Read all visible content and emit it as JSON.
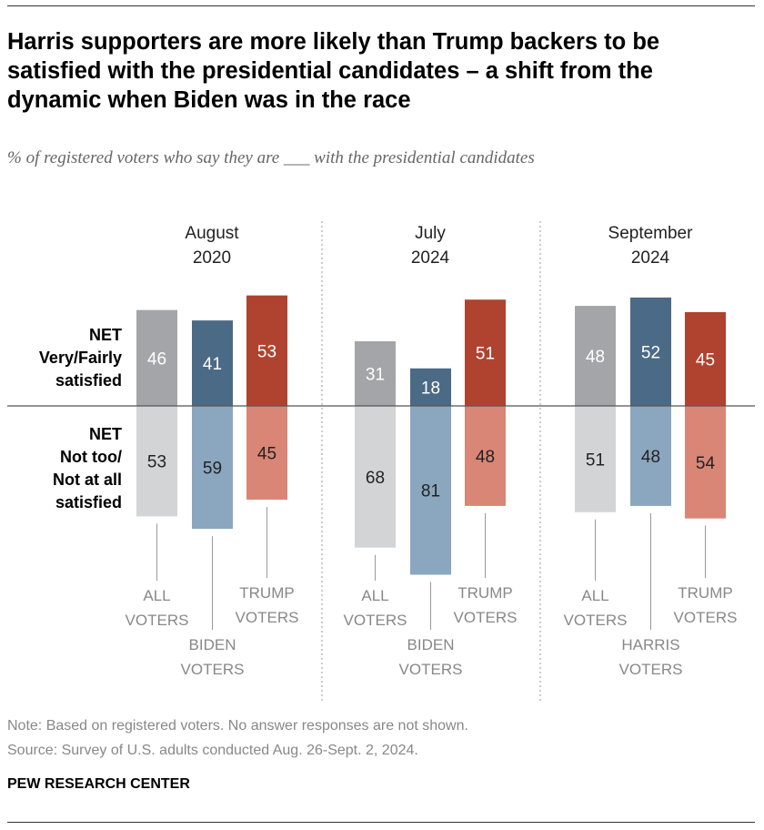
{
  "title": "Harris supporters are more likely than Trump backers to be satisfied with the presidential candidates – a shift from the dynamic when Biden was in the race",
  "subtitle": "% of registered voters who say they are ___ with the presidential candidates",
  "note": "Note: Based on registered voters. No answer responses are not shown.",
  "source": "Source: Survey of U.S. adults conducted Aug. 26-Sept. 2, 2024.",
  "brand": "PEW RESEARCH CENTER",
  "chart_data": {
    "type": "bar",
    "subtype": "diverging-grouped",
    "row_labels": {
      "satisfied": [
        "NET",
        "Very/Fairly",
        "satisfied"
      ],
      "not_satisfied": [
        "NET",
        "Not too/",
        "Not at all",
        "satisfied"
      ]
    },
    "groups": [
      {
        "label": [
          "August",
          "2020"
        ],
        "bars": [
          {
            "label": [
              "ALL",
              "VOTERS"
            ],
            "kind": "all",
            "satisfied": 46,
            "not_satisfied": 53
          },
          {
            "label": [
              "BIDEN",
              "VOTERS"
            ],
            "kind": "dem",
            "satisfied": 41,
            "not_satisfied": 59
          },
          {
            "label": [
              "TRUMP",
              "VOTERS"
            ],
            "kind": "rep",
            "satisfied": 53,
            "not_satisfied": 45
          }
        ]
      },
      {
        "label": [
          "July",
          "2024"
        ],
        "bars": [
          {
            "label": [
              "ALL",
              "VOTERS"
            ],
            "kind": "all",
            "satisfied": 31,
            "not_satisfied": 68
          },
          {
            "label": [
              "BIDEN",
              "VOTERS"
            ],
            "kind": "dem",
            "satisfied": 18,
            "not_satisfied": 81
          },
          {
            "label": [
              "TRUMP",
              "VOTERS"
            ],
            "kind": "rep",
            "satisfied": 51,
            "not_satisfied": 48
          }
        ]
      },
      {
        "label": [
          "September",
          "2024"
        ],
        "bars": [
          {
            "label": [
              "ALL",
              "VOTERS"
            ],
            "kind": "all",
            "satisfied": 48,
            "not_satisfied": 51
          },
          {
            "label": [
              "HARRIS",
              "VOTERS"
            ],
            "kind": "dem",
            "satisfied": 52,
            "not_satisfied": 48
          },
          {
            "label": [
              "TRUMP",
              "VOTERS"
            ],
            "kind": "rep",
            "satisfied": 45,
            "not_satisfied": 54
          }
        ]
      }
    ],
    "colors": {
      "all": {
        "satisfied": "#a4a5a8",
        "not_satisfied": "#d3d4d6"
      },
      "dem": {
        "satisfied": "#4b6a85",
        "not_satisfied": "#8ba7bf"
      },
      "rep": {
        "satisfied": "#b0432f",
        "not_satisfied": "#d98677"
      }
    }
  }
}
